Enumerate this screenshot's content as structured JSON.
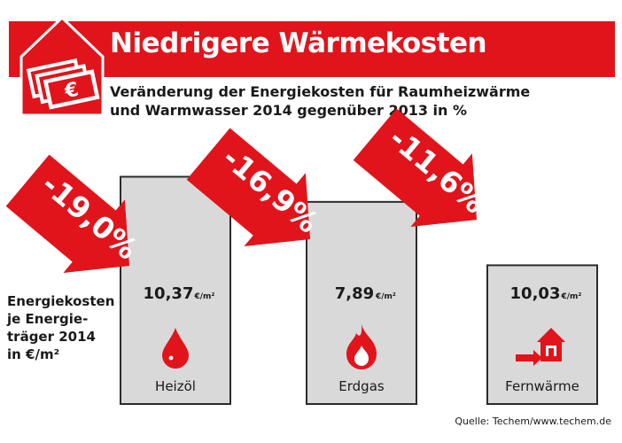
{
  "header": {
    "title": "Niedrigere Wärmekosten",
    "subtitle_line1": "Veränderung der Energiekosten für Raumheizwärme",
    "subtitle_line2": "und Warmwasser 2014 gegenüber 2013 in %"
  },
  "side_label": {
    "line1": "Energiekosten",
    "line2": "je Energie-",
    "line3": "träger 2014",
    "line4": "in €/m²"
  },
  "source": "Quelle: Techem/www.techem.de",
  "logo": {
    "symbol": "€",
    "icon": "house-with-euro-banknotes-icon"
  },
  "colors": {
    "accent": "#e1141b",
    "panel_fill": "#d9d9d9",
    "panel_border": "#2b2b2b",
    "text": "#1a1a1a"
  },
  "chart_data": {
    "type": "bar",
    "title": "Veränderung der Energiekosten für Raumheizwärme und Warmwasser 2014 gegenüber 2013 in %",
    "categories": [
      "Heizöl",
      "Erdgas",
      "Fernwärme"
    ],
    "change_percent": [
      -19.0,
      -16.9,
      -11.6
    ],
    "change_labels": [
      "-19,0%",
      "-16,9%",
      "-11,6%"
    ],
    "cost_values": [
      10.37,
      7.89,
      10.03
    ],
    "cost_labels": [
      "10,37",
      "7,89",
      "10,03"
    ],
    "cost_unit": "€/m²",
    "icons": [
      "oil-drop-icon",
      "gas-flame-icon",
      "district-heating-house-icon"
    ]
  }
}
